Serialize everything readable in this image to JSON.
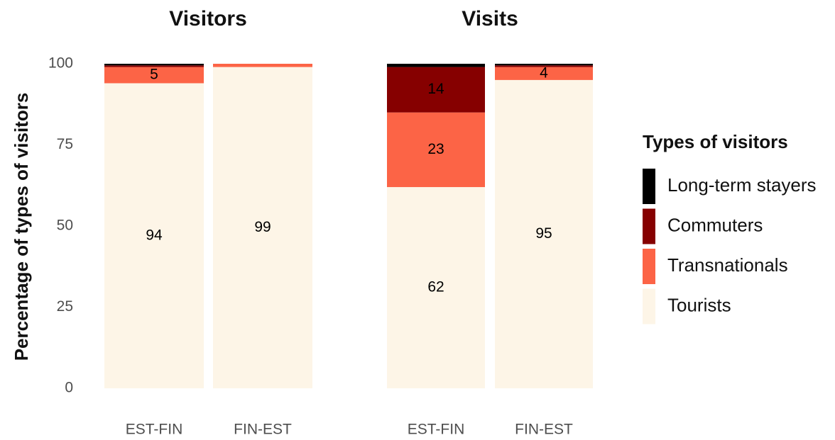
{
  "chart_data": [
    {
      "type": "bar",
      "stacked": true,
      "title": "Visitors",
      "y_label": "Percentage of types of visitors",
      "legend_title": "Types of visitors",
      "categories": [
        "EST-FIN",
        "FIN-EST"
      ],
      "series": [
        {
          "name": "Tourists",
          "color": "#fdf5e7",
          "values": [
            94,
            99
          ]
        },
        {
          "name": "Transnationals",
          "color": "#fc6446",
          "values": [
            5,
            1
          ]
        },
        {
          "name": "Commuters",
          "color": "#860000",
          "values": [
            0.5,
            0
          ]
        },
        {
          "name": "Long-term stayers",
          "color": "#000000",
          "values": [
            0.5,
            0
          ]
        }
      ],
      "ylim": [
        0,
        100
      ],
      "yticks": [
        0,
        25,
        50,
        75,
        100
      ],
      "grid": false
    },
    {
      "type": "bar",
      "stacked": true,
      "title": "Visits",
      "categories": [
        "EST-FIN",
        "FIN-EST"
      ],
      "series": [
        {
          "name": "Tourists",
          "color": "#fdf5e7",
          "values": [
            62,
            95
          ]
        },
        {
          "name": "Transnationals",
          "color": "#fc6446",
          "values": [
            23,
            4
          ]
        },
        {
          "name": "Commuters",
          "color": "#860000",
          "values": [
            14,
            0.5
          ]
        },
        {
          "name": "Long-term stayers",
          "color": "#000000",
          "values": [
            1,
            0.5
          ]
        }
      ],
      "ylim": [
        0,
        100
      ],
      "yticks": [
        0,
        25,
        50,
        75,
        100
      ],
      "grid": false
    }
  ]
}
